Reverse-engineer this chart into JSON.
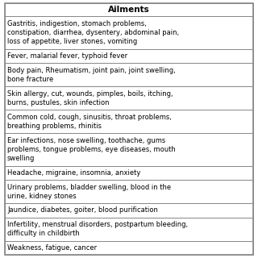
{
  "title": "Ailments",
  "rows": [
    "Gastritis, indigestion, stomach problems,\nconstipation, diarrhea, dysentery, abdominal pain,\nloss of appetite, liver stones, vomiting",
    "Fever, malarial fever, typhoid fever",
    "Body pain, Rheumatism, joint pain, joint swelling,\nbone fracture",
    "Skin allergy, cut, wounds, pimples, boils, itching,\nburns, pustules, skin infection",
    "Common cold, cough, sinusitis, throat problems,\nbreathing problems, rhinitis",
    "Ear infections, nose swelling, toothache, gums\nproblems, tongue problems, eye diseases, mouth\nswelling",
    "Headache, migraine, insomnia, anxiety",
    "Urinary problems, bladder swelling, blood in the\nurine, kidney stones",
    "Jaundice, diabetes, goiter, blood purification",
    "Infertility, menstrual disorders, postpartum bleeding,\ndifficulty in childbirth",
    "Weakness, fatigue, cancer"
  ],
  "bg_color": "#ffffff",
  "line_color": "#888888",
  "text_color": "#000000",
  "title_fontsize": 7.5,
  "cell_fontsize": 6.0,
  "fig_width": 3.2,
  "fig_height": 3.2,
  "dpi": 100
}
